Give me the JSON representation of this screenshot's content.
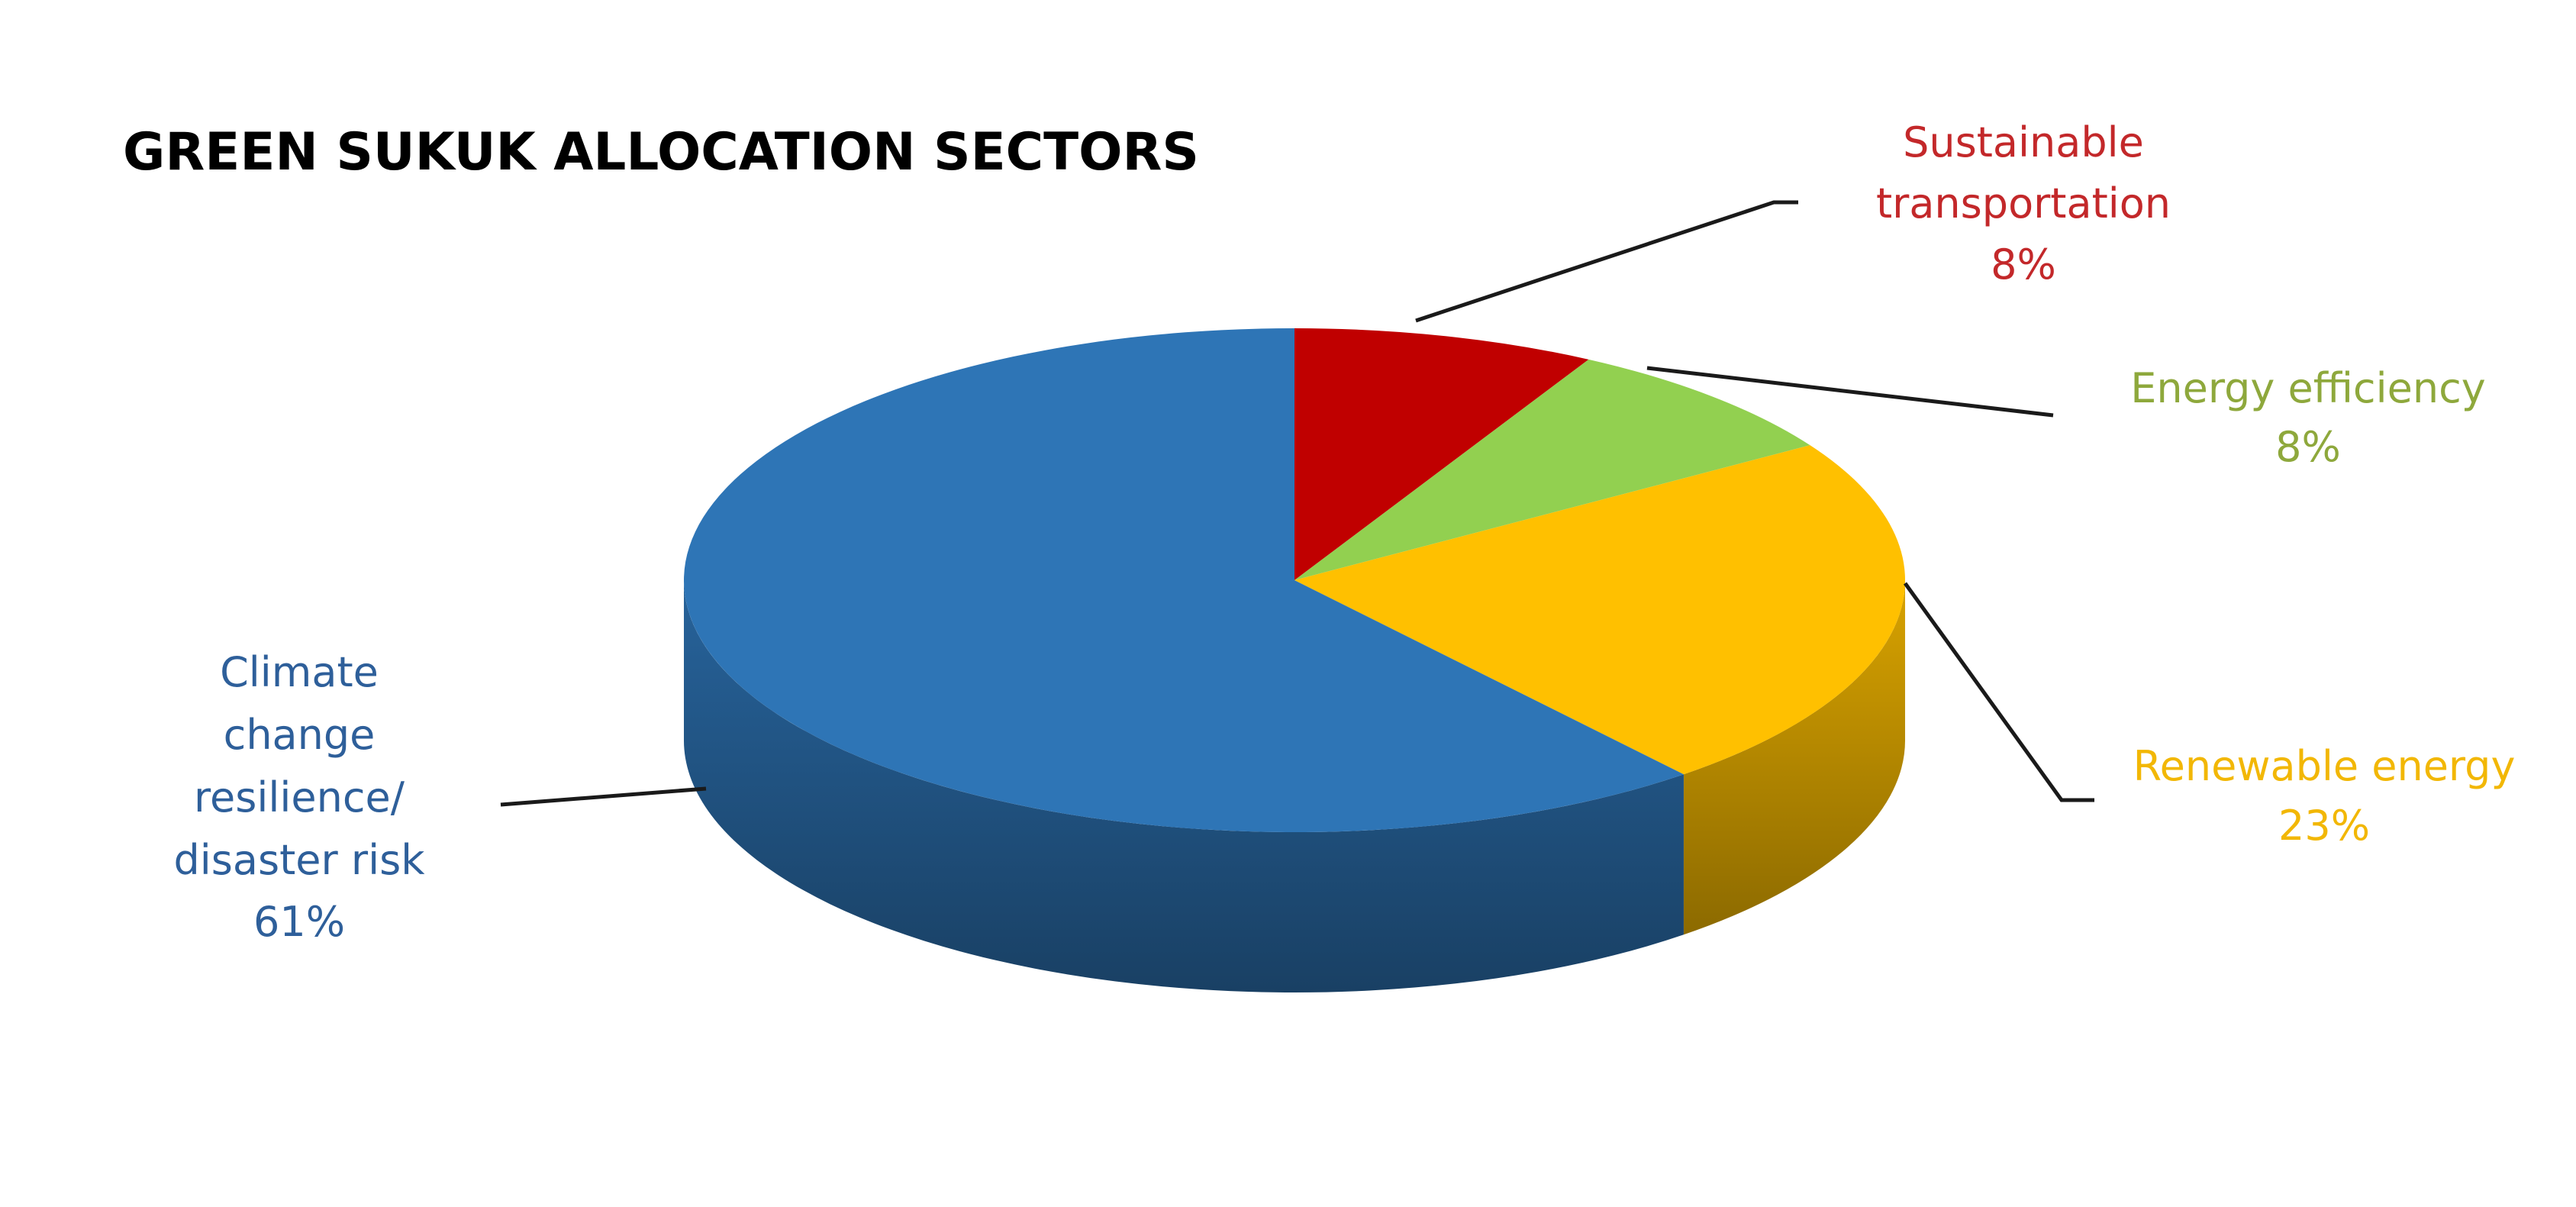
{
  "chart_data": {
    "type": "pie",
    "style": "3d",
    "title": "GREEN SUKUK ALLOCATION SECTORS",
    "legend": "none",
    "start_angle": "12 o'clock, clockwise",
    "slices": [
      {
        "label": "Sustainable transportation",
        "label_lines": [
          "Sustainable",
          "transportation",
          "8%"
        ],
        "value": 8,
        "color": "#c00000",
        "label_color": "#c3282a"
      },
      {
        "label": "Energy efficiency",
        "label_lines": [
          "Energy efficiency",
          "8%"
        ],
        "value": 8,
        "color": "#92d050",
        "label_color": "#8ea83c"
      },
      {
        "label": "Renewable energy",
        "label_lines": [
          "Renewable energy",
          "23%"
        ],
        "value": 23,
        "color": "#ffc000",
        "label_color": "#f2b705"
      },
      {
        "label": "Climate change resilience/ disaster risk",
        "label_lines": [
          "Climate",
          "change",
          "resilience/",
          "disaster risk",
          "61%"
        ],
        "value": 61,
        "color": "#2e75b6",
        "label_color": "#2e5f9a"
      }
    ]
  }
}
